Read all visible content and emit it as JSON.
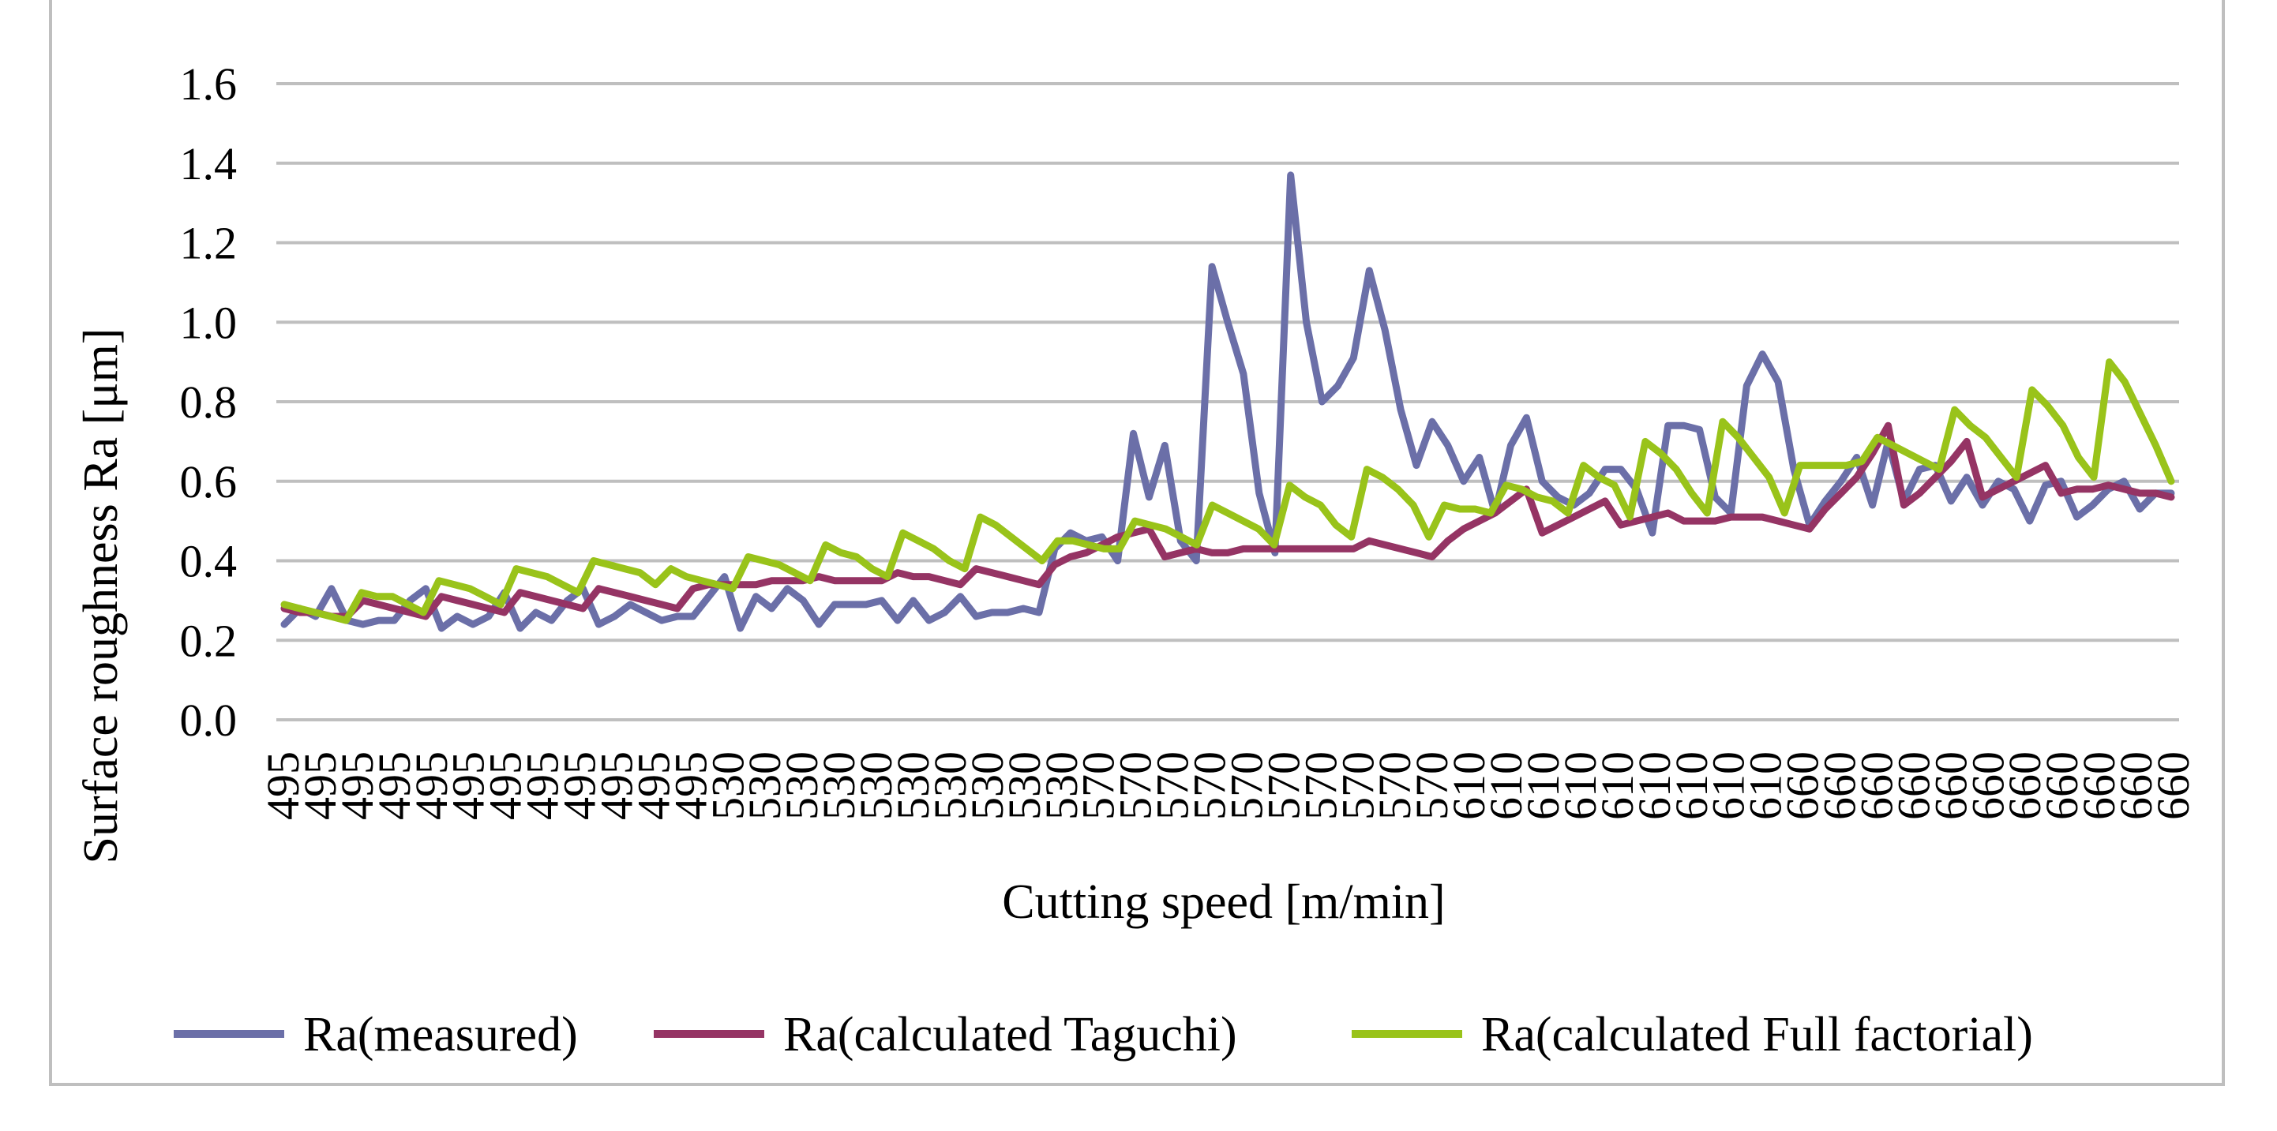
{
  "chart_data": {
    "type": "line",
    "title": "",
    "xlabel": "Cutting speed [m/min]",
    "ylabel": "Surface roughness Ra [μm]",
    "ylim": [
      0,
      1.6
    ],
    "yticks": [
      "0.0",
      "0.2",
      "0.4",
      "0.6",
      "0.8",
      "1.0",
      "1.2",
      "1.4",
      "1.6"
    ],
    "ytick_values": [
      0,
      0.2,
      0.4,
      0.6,
      0.8,
      1.0,
      1.2,
      1.4,
      1.6
    ],
    "grid": true,
    "legend": "bottom",
    "x_tick_labels": [
      "495",
      "495",
      "495",
      "495",
      "495",
      "495",
      "495",
      "495",
      "495",
      "495",
      "495",
      "495",
      "530",
      "530",
      "530",
      "530",
      "530",
      "530",
      "530",
      "530",
      "530",
      "530",
      "570",
      "570",
      "570",
      "570",
      "570",
      "570",
      "570",
      "570",
      "570",
      "570",
      "610",
      "610",
      "610",
      "610",
      "610",
      "610",
      "610",
      "610",
      "610",
      "660",
      "660",
      "660",
      "660",
      "660",
      "660",
      "660",
      "660",
      "660",
      "660",
      "660"
    ],
    "series": [
      {
        "name": "Ra(measured)",
        "color": "#6b6fa8",
        "values": [
          0.24,
          0.28,
          0.26,
          0.33,
          0.25,
          0.24,
          0.25,
          0.25,
          0.3,
          0.33,
          0.23,
          0.26,
          0.24,
          0.26,
          0.32,
          0.23,
          0.27,
          0.25,
          0.3,
          0.33,
          0.24,
          0.26,
          0.29,
          0.27,
          0.25,
          0.26,
          0.26,
          0.31,
          0.36,
          0.23,
          0.31,
          0.28,
          0.33,
          0.3,
          0.24,
          0.29,
          0.29,
          0.29,
          0.3,
          0.25,
          0.3,
          0.25,
          0.27,
          0.31,
          0.26,
          0.27,
          0.27,
          0.28,
          0.27,
          0.43,
          0.47,
          0.45,
          0.46,
          0.4,
          0.72,
          0.56,
          0.69,
          0.45,
          0.4,
          1.14,
          1.0,
          0.87,
          0.57,
          0.42,
          1.37,
          1.0,
          0.8,
          0.84,
          0.91,
          1.13,
          0.98,
          0.78,
          0.64,
          0.75,
          0.69,
          0.6,
          0.66,
          0.52,
          0.69,
          0.76,
          0.6,
          0.56,
          0.54,
          0.57,
          0.63,
          0.63,
          0.58,
          0.47,
          0.74,
          0.74,
          0.73,
          0.56,
          0.52,
          0.84,
          0.92,
          0.85,
          0.63,
          0.49,
          0.55,
          0.6,
          0.66,
          0.54,
          0.7,
          0.55,
          0.63,
          0.64,
          0.55,
          0.61,
          0.54,
          0.6,
          0.58,
          0.5,
          0.59,
          0.6,
          0.51,
          0.54,
          0.58,
          0.6,
          0.53,
          0.57,
          0.57
        ],
        "ox": 0.01
      },
      {
        "name": "Ra(calculated Taguchi)",
        "color": "#953464",
        "values": [
          0.28,
          0.27,
          0.27,
          0.26,
          0.26,
          0.3,
          0.29,
          0.28,
          0.27,
          0.26,
          0.31,
          0.3,
          0.29,
          0.28,
          0.27,
          0.32,
          0.31,
          0.3,
          0.29,
          0.28,
          0.33,
          0.32,
          0.31,
          0.3,
          0.29,
          0.28,
          0.33,
          0.34,
          0.34,
          0.34,
          0.34,
          0.35,
          0.35,
          0.35,
          0.36,
          0.35,
          0.35,
          0.35,
          0.35,
          0.37,
          0.36,
          0.36,
          0.35,
          0.34,
          0.38,
          0.37,
          0.36,
          0.35,
          0.34,
          0.39,
          0.41,
          0.42,
          0.44,
          0.46,
          0.47,
          0.48,
          0.41,
          0.42,
          0.43,
          0.42,
          0.42,
          0.43,
          0.43,
          0.43,
          0.43,
          0.43,
          0.43,
          0.43,
          0.43,
          0.45,
          0.44,
          0.43,
          0.42,
          0.41,
          0.45,
          0.48,
          0.5,
          0.52,
          0.55,
          0.58,
          0.47,
          0.49,
          0.51,
          0.53,
          0.55,
          0.49,
          0.5,
          0.51,
          0.52,
          0.5,
          0.5,
          0.5,
          0.51,
          0.51,
          0.51,
          0.5,
          0.49,
          0.48,
          0.53,
          0.57,
          0.61,
          0.67,
          0.74,
          0.54,
          0.57,
          0.61,
          0.65,
          0.7,
          0.56,
          0.58,
          0.6,
          0.62,
          0.64,
          0.57,
          0.58,
          0.58,
          0.59,
          0.58,
          0.57,
          0.57,
          0.56
        ],
        "ox": 0.0
      },
      {
        "name": "Ra(calculated Full factorial)",
        "color": "#99c31a",
        "values": [
          0.29,
          0.28,
          0.27,
          0.26,
          0.25,
          0.32,
          0.31,
          0.31,
          0.29,
          0.27,
          0.35,
          0.34,
          0.33,
          0.31,
          0.29,
          0.38,
          0.37,
          0.36,
          0.34,
          0.32,
          0.4,
          0.39,
          0.38,
          0.37,
          0.34,
          0.38,
          0.36,
          0.35,
          0.34,
          0.33,
          0.41,
          0.4,
          0.39,
          0.37,
          0.35,
          0.44,
          0.42,
          0.41,
          0.38,
          0.36,
          0.47,
          0.45,
          0.43,
          0.4,
          0.38,
          0.51,
          0.49,
          0.46,
          0.43,
          0.4,
          0.45,
          0.45,
          0.44,
          0.43,
          0.43,
          0.5,
          0.49,
          0.48,
          0.46,
          0.44,
          0.54,
          0.52,
          0.5,
          0.48,
          0.44,
          0.59,
          0.56,
          0.54,
          0.49,
          0.46,
          0.63,
          0.61,
          0.58,
          0.54,
          0.46,
          0.54,
          0.53,
          0.53,
          0.52,
          0.59,
          0.58,
          0.56,
          0.55,
          0.52,
          0.64,
          0.61,
          0.59,
          0.51,
          0.7,
          0.67,
          0.63,
          0.57,
          0.52,
          0.75,
          0.71,
          0.66,
          0.61,
          0.52,
          0.64,
          0.64,
          0.64,
          0.64,
          0.65,
          0.71,
          0.69,
          0.67,
          0.65,
          0.63,
          0.78,
          0.74,
          0.71,
          0.66,
          0.61,
          0.83,
          0.79,
          0.74,
          0.66,
          0.61,
          0.9,
          0.85,
          0.77,
          0.69,
          0.6
        ],
        "ox": 0.0
      }
    ]
  }
}
